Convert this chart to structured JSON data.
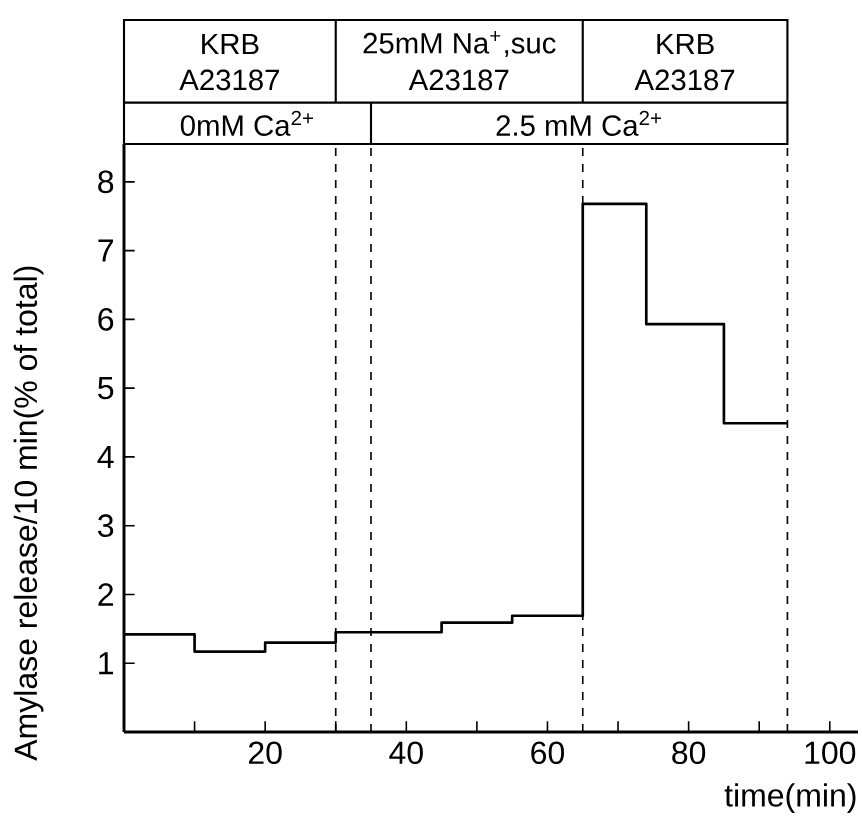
{
  "chart_data": {
    "type": "step",
    "xlabel": "time(min)",
    "ylabel": "Amylase release/10 min(% of total)",
    "x": [
      0,
      10,
      20,
      30,
      45,
      55,
      65,
      74,
      85,
      94
    ],
    "values": [
      1.42,
      1.17,
      1.3,
      1.45,
      1.59,
      1.69,
      7.68,
      5.93,
      4.49,
      4.49
    ],
    "color": "#000000",
    "marker": "none",
    "line_style": "solid",
    "xlim": [
      0,
      104
    ],
    "ylim": [
      0,
      8.55
    ],
    "xticks": [
      {
        "value": 10,
        "label": null
      },
      20,
      {
        "value": 30,
        "label": null
      },
      40,
      {
        "value": 50,
        "label": null
      },
      60,
      {
        "value": 70,
        "label": null
      },
      80,
      {
        "value": 90,
        "label": null
      },
      100
    ],
    "yticks": [
      1,
      2,
      3,
      4,
      5,
      6,
      7,
      8
    ],
    "ref_lines": [
      {
        "axis": "x",
        "value": 30,
        "line_style": "dashed"
      },
      {
        "axis": "x",
        "value": 35,
        "line_style": "dashed"
      },
      {
        "axis": "x",
        "value": 65,
        "line_style": "dashed"
      },
      {
        "axis": "x",
        "value": 94,
        "line_style": "dashed"
      }
    ],
    "annotations": [
      "KRB",
      "25mM Na$^{+}$,suc",
      "KRB",
      "A23187",
      "A23187",
      "A23187",
      "0mM Ca$^{2+}$",
      "2.5 mM Ca$^{2+}$"
    ]
  }
}
